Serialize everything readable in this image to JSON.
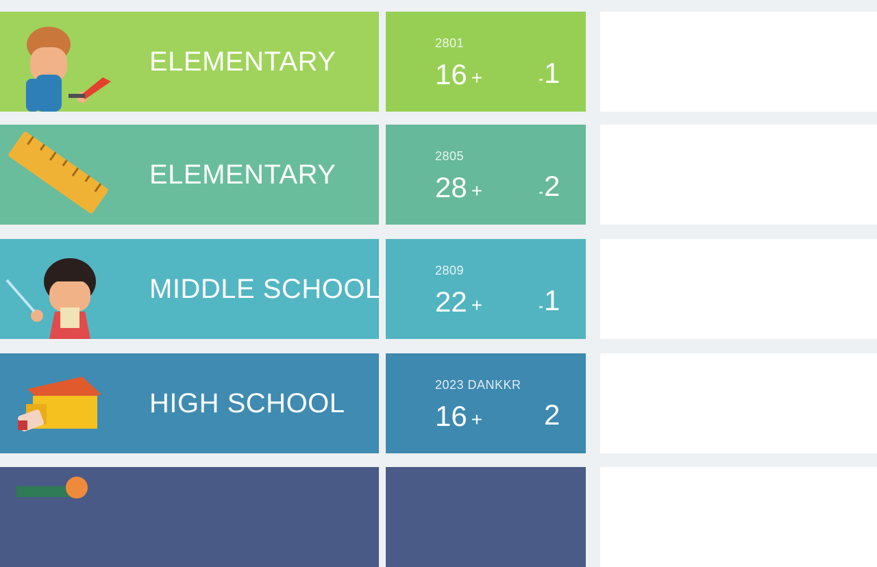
{
  "rows": [
    {
      "label": "ELEMENTARY",
      "small": "2801",
      "big": "16",
      "plus": "+",
      "right": "1",
      "color": "#9fd35b",
      "icon": "boy-painting-icon"
    },
    {
      "label": "ELEMENTARY",
      "small": "2805",
      "big": "28",
      "plus": "+",
      "right": "2",
      "color": "#69bd9d",
      "icon": "ruler-icon"
    },
    {
      "label": "MIDDLE SCHOOL",
      "small": "2809",
      "big": "22",
      "plus": "+",
      "right": "1",
      "color": "#53b6c3",
      "icon": "girl-icon"
    },
    {
      "label": "HIGH SCHOOL",
      "small": "2023 DANKKR",
      "big": "16",
      "plus": "+",
      "right": "2",
      "color": "#3f8bb1",
      "icon": "school-building-icon"
    },
    {
      "label": "",
      "small": "",
      "big": "",
      "plus": "",
      "right": "",
      "color": "#4a5a86",
      "icon": "pencil-ball-icon"
    }
  ]
}
